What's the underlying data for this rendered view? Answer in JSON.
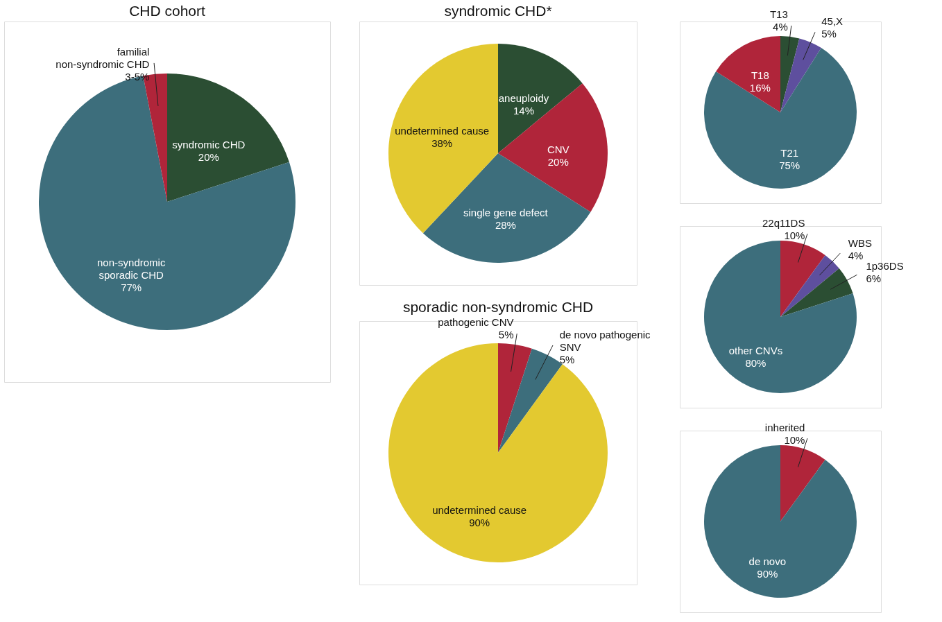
{
  "chart_data": [
    {
      "type": "pie",
      "title": "CHD cohort",
      "categories": [
        "syndromic CHD",
        "non-syndromic sporadic CHD",
        "familial non-syndromic CHD"
      ],
      "values": [
        20,
        77,
        3
      ],
      "value_labels": [
        "20%",
        "77%",
        "3-5%"
      ],
      "colors": [
        "#2b4e33",
        "#3d6e7c",
        "#b0253a"
      ]
    },
    {
      "type": "pie",
      "title": "syndromic CHD*",
      "categories": [
        "aneuploidy",
        "CNV",
        "single gene defect",
        "undetermined cause"
      ],
      "values": [
        14,
        20,
        28,
        38
      ],
      "value_labels": [
        "14%",
        "20%",
        "28%",
        "38%"
      ],
      "colors": [
        "#2b4e33",
        "#b0253a",
        "#3d6e7c",
        "#e3c930"
      ]
    },
    {
      "type": "pie",
      "categories": [
        "T13",
        "45,X",
        "T21",
        "T18"
      ],
      "values": [
        4,
        5,
        75,
        16
      ],
      "value_labels": [
        "4%",
        "5%",
        "75%",
        "16%"
      ],
      "colors": [
        "#2b4e33",
        "#5e4f9e",
        "#3d6e7c",
        "#b0253a"
      ]
    },
    {
      "type": "pie",
      "categories": [
        "22q11DS",
        "WBS",
        "1p36DS",
        "other CNVs"
      ],
      "values": [
        10,
        4,
        6,
        80
      ],
      "value_labels": [
        "10%",
        "4%",
        "6%",
        "80%"
      ],
      "colors": [
        "#b0253a",
        "#5e4f9e",
        "#2b4e33",
        "#3d6e7c"
      ]
    },
    {
      "type": "pie",
      "categories": [
        "inherited",
        "de novo"
      ],
      "values": [
        10,
        90
      ],
      "value_labels": [
        "10%",
        "90%"
      ],
      "colors": [
        "#b0253a",
        "#3d6e7c"
      ]
    },
    {
      "type": "pie",
      "title": "sporadic non-syndromic CHD",
      "categories": [
        "pathogenic CNV",
        "de novo pathogenic SNV",
        "undetermined cause"
      ],
      "values": [
        5,
        5,
        90
      ],
      "value_labels": [
        "5%",
        "5%",
        "90%"
      ],
      "colors": [
        "#b0253a",
        "#3d6e7c",
        "#e3c930"
      ]
    }
  ]
}
